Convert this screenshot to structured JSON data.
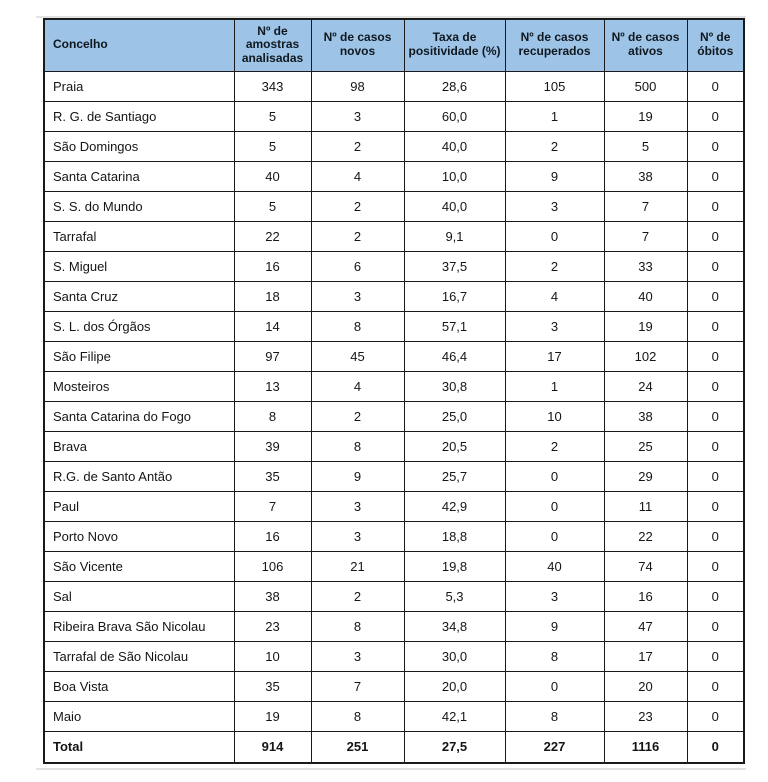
{
  "colors": {
    "header_bg": "#9dc3e6",
    "border": "#1a1a1a",
    "text": "#151515",
    "page_bg": "#ffffff"
  },
  "table": {
    "columns": [
      "Concelho",
      "Nº de amostras analisadas",
      "Nº de casos novos",
      "Taxa de positividade (%)",
      "Nº de casos recuperados",
      "Nº de casos ativos",
      "Nº de óbitos"
    ],
    "rows": [
      [
        "Praia",
        "343",
        "98",
        "28,6",
        "105",
        "500",
        "0"
      ],
      [
        "R. G. de Santiago",
        "5",
        "3",
        "60,0",
        "1",
        "19",
        "0"
      ],
      [
        "São Domingos",
        "5",
        "2",
        "40,0",
        "2",
        "5",
        "0"
      ],
      [
        "Santa Catarina",
        "40",
        "4",
        "10,0",
        "9",
        "38",
        "0"
      ],
      [
        "S. S. do Mundo",
        "5",
        "2",
        "40,0",
        "3",
        "7",
        "0"
      ],
      [
        "Tarrafal",
        "22",
        "2",
        "9,1",
        "0",
        "7",
        "0"
      ],
      [
        "S. Miguel",
        "16",
        "6",
        "37,5",
        "2",
        "33",
        "0"
      ],
      [
        "Santa Cruz",
        "18",
        "3",
        "16,7",
        "4",
        "40",
        "0"
      ],
      [
        "S. L. dos Órgãos",
        "14",
        "8",
        "57,1",
        "3",
        "19",
        "0"
      ],
      [
        "São Filipe",
        "97",
        "45",
        "46,4",
        "17",
        "102",
        "0"
      ],
      [
        "Mosteiros",
        "13",
        "4",
        "30,8",
        "1",
        "24",
        "0"
      ],
      [
        "Santa Catarina do Fogo",
        "8",
        "2",
        "25,0",
        "10",
        "38",
        "0"
      ],
      [
        "Brava",
        "39",
        "8",
        "20,5",
        "2",
        "25",
        "0"
      ],
      [
        "R.G. de Santo Antão",
        "35",
        "9",
        "25,7",
        "0",
        "29",
        "0"
      ],
      [
        "Paul",
        "7",
        "3",
        "42,9",
        "0",
        "11",
        "0"
      ],
      [
        "Porto Novo",
        "16",
        "3",
        "18,8",
        "0",
        "22",
        "0"
      ],
      [
        "São Vicente",
        "106",
        "21",
        "19,8",
        "40",
        "74",
        "0"
      ],
      [
        "Sal",
        "38",
        "2",
        "5,3",
        "3",
        "16",
        "0"
      ],
      [
        "Ribeira Brava São Nicolau",
        "23",
        "8",
        "34,8",
        "9",
        "47",
        "0"
      ],
      [
        "Tarrafal de São Nicolau",
        "10",
        "3",
        "30,0",
        "8",
        "17",
        "0"
      ],
      [
        "Boa Vista",
        "35",
        "7",
        "20,0",
        "0",
        "20",
        "0"
      ],
      [
        "Maio",
        "19",
        "8",
        "42,1",
        "8",
        "23",
        "0"
      ]
    ],
    "total_row": [
      "Total",
      "914",
      "251",
      "27,5",
      "227",
      "1116",
      "0"
    ]
  }
}
